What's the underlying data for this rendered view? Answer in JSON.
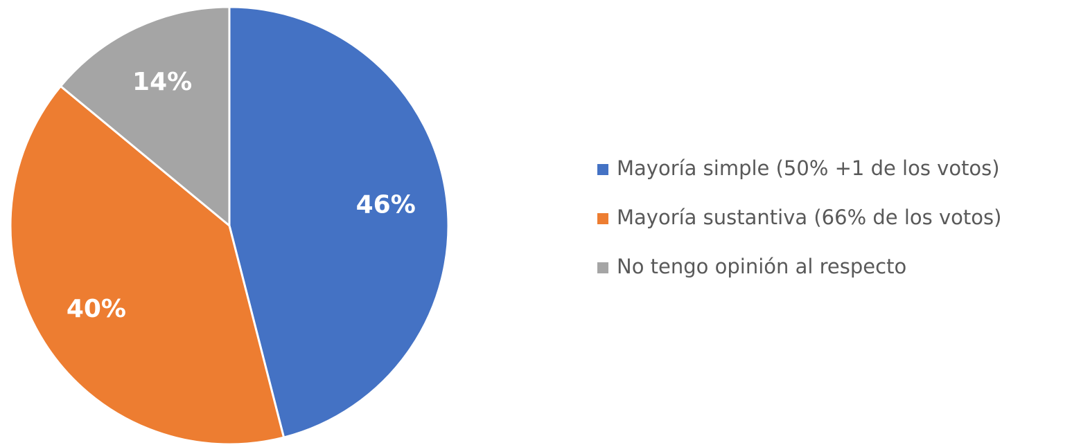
{
  "chart_data": {
    "type": "pie",
    "categories": [
      "Mayoría simple (50% +1 de los votos)",
      "Mayoría sustantiva (66% de los votos)",
      "No tengo opinión al respecto"
    ],
    "values": [
      46,
      40,
      14
    ],
    "value_labels": [
      "46%",
      "40%",
      "14%"
    ],
    "colors": [
      "#4472c4",
      "#ed7d31",
      "#a5a5a5"
    ],
    "legend": "right"
  }
}
